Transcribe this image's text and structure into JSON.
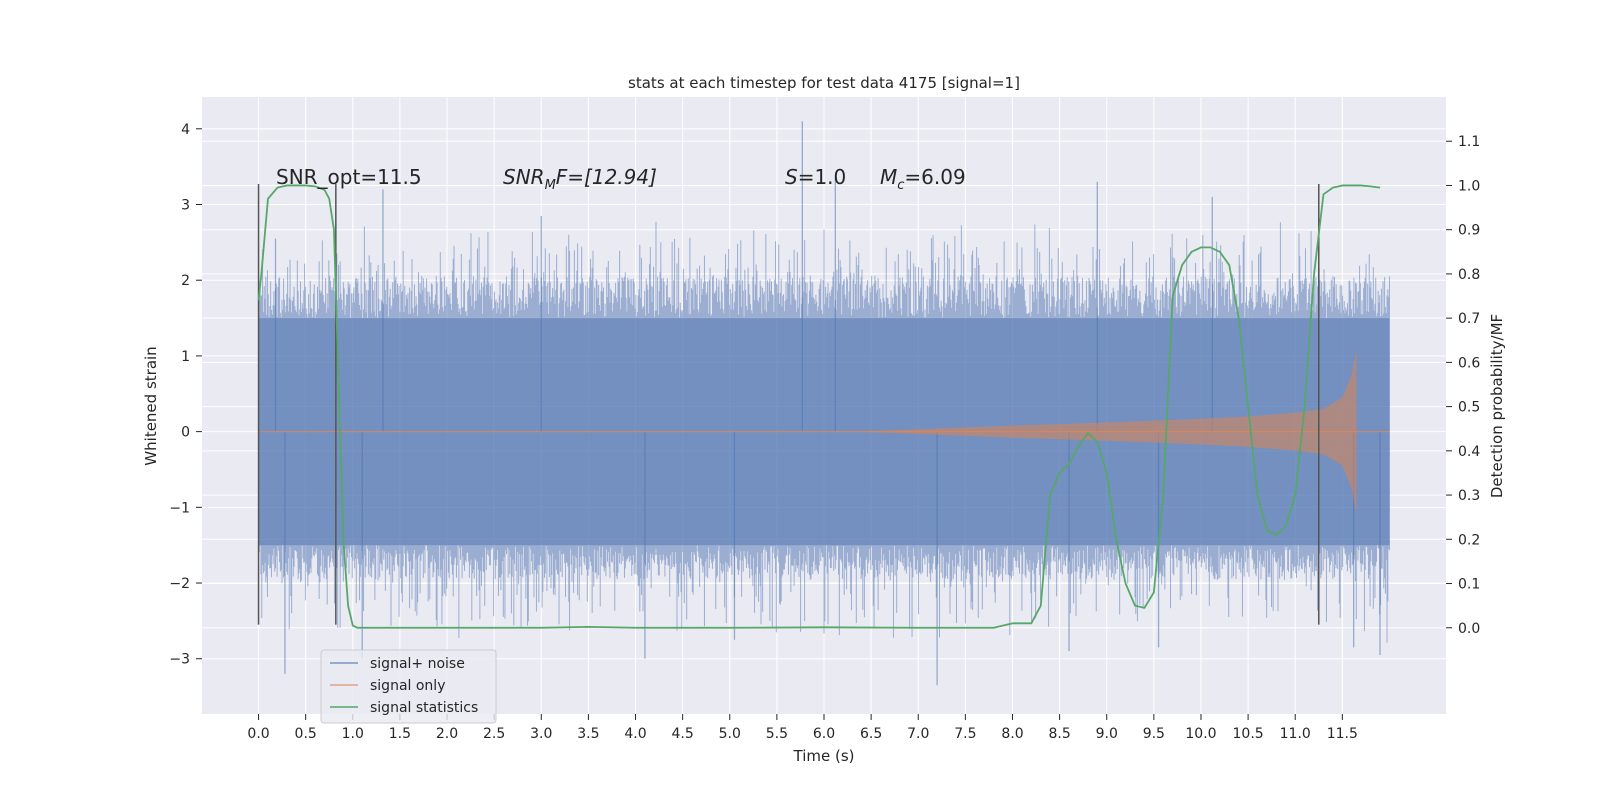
{
  "chart_data": {
    "type": "line",
    "title": "stats at each timestep for test data 4175 [signal=1]",
    "xlabel": "Time (s)",
    "ylabel_left": "Whitened strain",
    "ylabel_right": "Detection probability/MF",
    "xlim": [
      -0.6,
      12.6
    ],
    "ylim_left": [
      -3.73,
      4.42
    ],
    "ylim_right": [
      -0.195,
      1.2
    ],
    "x_ticks": [
      0.0,
      0.5,
      1.0,
      1.5,
      2.0,
      2.5,
      3.0,
      3.5,
      4.0,
      4.5,
      5.0,
      5.5,
      6.0,
      6.5,
      7.0,
      7.5,
      8.0,
      8.5,
      9.0,
      9.5,
      10.0,
      10.5,
      11.0,
      11.5
    ],
    "x_tick_labels": [
      "0.0",
      "0.5",
      "1.0",
      "1.5",
      "2.0",
      "2.5",
      "3.0",
      "3.5",
      "4.0",
      "4.5",
      "5.0",
      "5.5",
      "6.0",
      "6.5",
      "7.0",
      "7.5",
      "8.0",
      "8.5",
      "9.0",
      "9.5",
      "10.0",
      "10.5",
      "11.0",
      "11.5"
    ],
    "y_left_ticks": [
      -3,
      -2,
      -1,
      0,
      1,
      2,
      3,
      4
    ],
    "y_left_tick_labels": [
      "−3",
      "−2",
      "−1",
      "0",
      "1",
      "2",
      "3",
      "4"
    ],
    "y_right_ticks": [
      0.0,
      0.1,
      0.2,
      0.3,
      0.4,
      0.5,
      0.6,
      0.7,
      0.8,
      0.9,
      1.0,
      1.1
    ],
    "y_right_tick_labels": [
      "0.0",
      "0.1",
      "0.2",
      "0.3",
      "0.4",
      "0.5",
      "0.6",
      "0.7",
      "0.8",
      "0.9",
      "1.0",
      "1.1"
    ],
    "grid": true,
    "legend_position": "lower-left",
    "annotations": [
      {
        "label": "SNR_opt=11.5"
      },
      {
        "label": "SNR",
        "sub": "M",
        "label_tail": "F=[12.94]"
      },
      {
        "label": "S",
        "label_tail": "=1.0"
      },
      {
        "label": "M",
        "sub": "c",
        "label_tail": "=6.09"
      }
    ],
    "vlines": [
      {
        "x": 0.0,
        "ymin": -2.55,
        "ymax": 3.27
      },
      {
        "x": 0.82,
        "ymin": -2.55,
        "ymax": 3.27
      },
      {
        "x": 11.25,
        "ymin": -2.55,
        "ymax": 3.27
      }
    ],
    "series": [
      {
        "name": "signal+ noise",
        "color": "#4c72b0",
        "axis": "left",
        "kind": "noise",
        "x_range": [
          0.0,
          12.0
        ],
        "envelope": [
          -1.5,
          1.5
        ],
        "spikes": [
          {
            "x": 5.77,
            "y": 4.1
          },
          {
            "x": 6.12,
            "y": 3.35
          },
          {
            "x": 8.9,
            "y": 3.3
          },
          {
            "x": 1.32,
            "y": 3.2
          },
          {
            "x": 0.18,
            "y": 2.55
          },
          {
            "x": 3.0,
            "y": 2.85
          },
          {
            "x": 10.12,
            "y": 3.1
          },
          {
            "x": 7.2,
            "y": -3.35
          },
          {
            "x": 0.28,
            "y": -3.2
          },
          {
            "x": 4.1,
            "y": -3.0
          },
          {
            "x": 1.1,
            "y": -3.0
          },
          {
            "x": 11.62,
            "y": -2.85
          },
          {
            "x": 9.55,
            "y": -2.85
          },
          {
            "x": 11.9,
            "y": -2.95
          },
          {
            "x": 8.6,
            "y": -2.9
          },
          {
            "x": 5.05,
            "y": -2.75
          }
        ]
      },
      {
        "name": "signal only",
        "color": "#dd8452",
        "axis": "left",
        "kind": "chirp",
        "x_start": 6.3,
        "x_end": 11.65,
        "amp_points": [
          [
            6.3,
            0.0
          ],
          [
            7.0,
            0.03
          ],
          [
            8.0,
            0.08
          ],
          [
            9.0,
            0.12
          ],
          [
            10.0,
            0.17
          ],
          [
            10.5,
            0.2
          ],
          [
            11.0,
            0.25
          ],
          [
            11.3,
            0.3
          ],
          [
            11.5,
            0.45
          ],
          [
            11.6,
            0.75
          ],
          [
            11.65,
            1.1
          ]
        ]
      },
      {
        "name": "signal statistics",
        "color": "#55a868",
        "axis": "right",
        "kind": "line",
        "x": [
          0.0,
          0.03,
          0.1,
          0.2,
          0.3,
          0.5,
          0.6,
          0.7,
          0.75,
          0.8,
          0.85,
          0.9,
          0.95,
          1.0,
          1.05,
          1.2,
          2.0,
          3.0,
          3.5,
          4.0,
          5.0,
          6.0,
          7.0,
          7.8,
          8.0,
          8.2,
          8.3,
          8.4,
          8.5,
          8.6,
          8.7,
          8.8,
          8.9,
          9.0,
          9.1,
          9.2,
          9.3,
          9.4,
          9.5,
          9.6,
          9.7,
          9.8,
          9.9,
          10.0,
          10.1,
          10.2,
          10.3,
          10.4,
          10.5,
          10.6,
          10.7,
          10.8,
          10.9,
          11.0,
          11.1,
          11.2,
          11.3,
          11.4,
          11.5,
          11.6,
          11.7,
          11.8,
          11.9
        ],
        "y": [
          0.74,
          0.8,
          0.97,
          0.995,
          1.0,
          1.0,
          0.998,
          0.99,
          0.97,
          0.9,
          0.55,
          0.2,
          0.05,
          0.005,
          0.0,
          0.0,
          0.0,
          0.0,
          0.002,
          0.0,
          0.0,
          0.001,
          0.0,
          0.0,
          0.01,
          0.01,
          0.05,
          0.3,
          0.35,
          0.37,
          0.41,
          0.44,
          0.42,
          0.35,
          0.2,
          0.1,
          0.05,
          0.045,
          0.08,
          0.3,
          0.75,
          0.82,
          0.85,
          0.86,
          0.86,
          0.85,
          0.82,
          0.7,
          0.5,
          0.3,
          0.22,
          0.21,
          0.23,
          0.3,
          0.5,
          0.8,
          0.98,
          0.995,
          1.0,
          1.0,
          1.0,
          0.998,
          0.995
        ]
      }
    ]
  }
}
